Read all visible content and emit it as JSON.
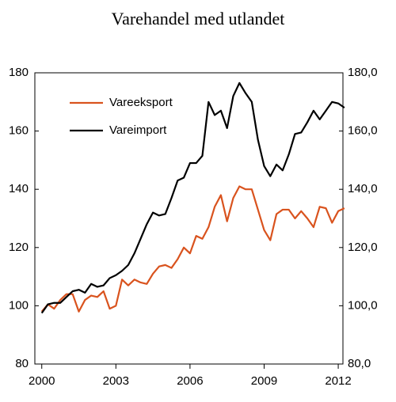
{
  "chart_data": {
    "type": "line",
    "title": "Varehandel med utlandet",
    "x": [
      2000,
      2000.25,
      2000.5,
      2000.75,
      2001,
      2001.25,
      2001.5,
      2001.75,
      2002,
      2002.25,
      2002.5,
      2002.75,
      2003,
      2003.25,
      2003.5,
      2003.75,
      2004,
      2004.25,
      2004.5,
      2004.75,
      2005,
      2005.25,
      2005.5,
      2005.75,
      2006,
      2006.25,
      2006.5,
      2006.75,
      2007,
      2007.25,
      2007.5,
      2007.75,
      2008,
      2008.25,
      2008.5,
      2008.75,
      2009,
      2009.25,
      2009.5,
      2009.75,
      2010,
      2010.25,
      2010.5,
      2010.75,
      2011,
      2011.25,
      2011.5,
      2011.75,
      2012,
      2012.25
    ],
    "series": [
      {
        "name": "Vareeksport",
        "color": "#d9531e",
        "values": [
          98,
          100.5,
          99,
          102,
          104,
          104,
          98,
          102,
          103.5,
          103,
          105,
          99,
          100,
          109,
          107,
          109,
          108,
          107.5,
          111,
          113.5,
          114,
          113,
          116,
          120,
          118,
          124,
          123,
          127,
          134,
          138,
          129,
          137,
          141,
          140,
          140,
          133,
          126,
          122.5,
          131.5,
          133,
          133,
          130,
          132.5,
          130,
          127,
          134,
          133.5,
          128.5,
          132.5,
          133.5
        ]
      },
      {
        "name": "Vareimport",
        "color": "#000000",
        "values": [
          97.5,
          100.5,
          101,
          101,
          103,
          105,
          105.5,
          104.5,
          107.5,
          106.5,
          107,
          109.5,
          110.5,
          112,
          114,
          118,
          123,
          128,
          132,
          131,
          131.5,
          137,
          143,
          144,
          149,
          149,
          151.5,
          170,
          165.5,
          167,
          161,
          172,
          176.5,
          173,
          170,
          157,
          148,
          144.5,
          148.5,
          146.5,
          152,
          159,
          159.5,
          163,
          167,
          164,
          167,
          170,
          169.5,
          168
        ]
      }
    ],
    "xlim": [
      1999.72,
      2012.19
    ],
    "xticks": [
      2000,
      2003,
      2006,
      2009,
      2012
    ],
    "ylim": [
      80,
      180
    ],
    "yticks": [
      80,
      100,
      120,
      140,
      160,
      180
    ],
    "y2lim": [
      80,
      180
    ],
    "y2ticks": [
      {
        "value": 80,
        "label": "80,0"
      },
      {
        "value": 100,
        "label": "100,0"
      },
      {
        "value": 120,
        "label": "120,0"
      },
      {
        "value": 140,
        "label": "140,0"
      },
      {
        "value": 160,
        "label": "160,0"
      },
      {
        "value": 180,
        "label": "180,0"
      }
    ],
    "legend": "upper left",
    "grid": false
  }
}
